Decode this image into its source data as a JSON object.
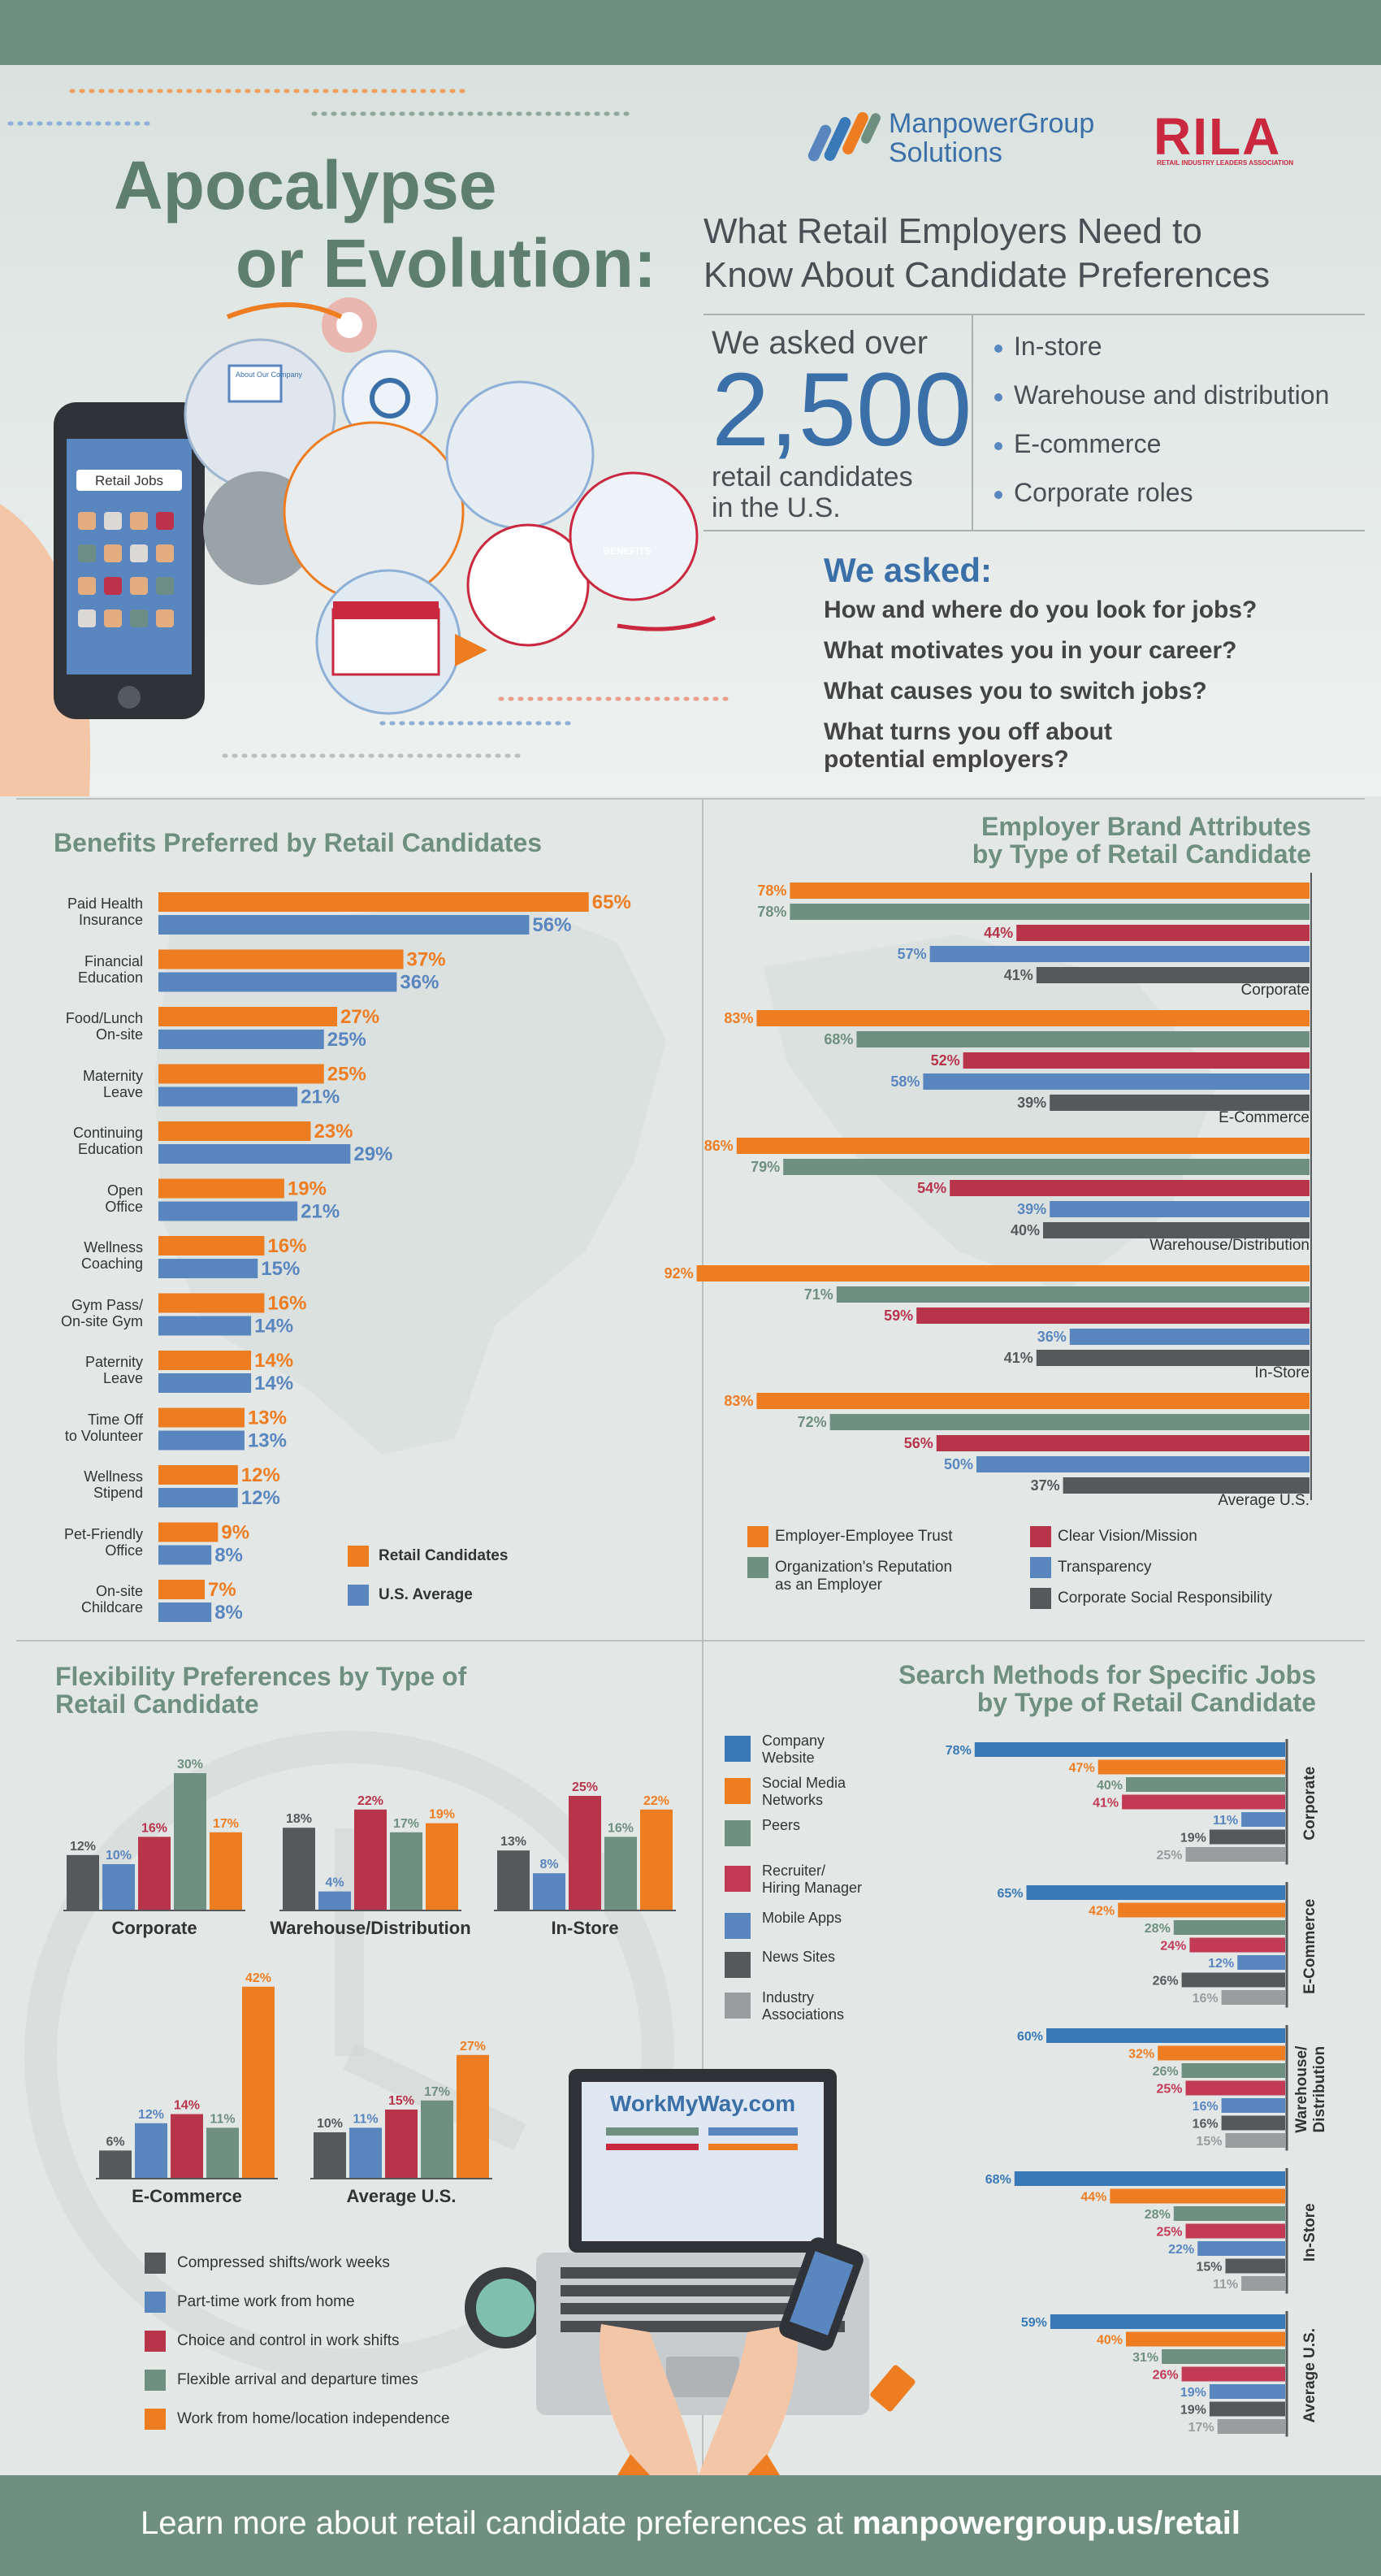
{
  "header": {
    "title_line1": "Apocalypse",
    "title_line2": "or Evolution:",
    "subtitle_line1": "What Retail Employers Need to",
    "subtitle_line2": "Know About Candidate Preferences",
    "brand1_line1": "ManpowerGroup",
    "brand1_line2": "Solutions",
    "brand2": "RILA",
    "brand2_sub": "RETAIL INDUSTRY LEADERS ASSOCIATION",
    "phone_search": "Retail Jobs",
    "illus_about": "About Our Company",
    "illus_benefits": "BENEFITS",
    "asked_over": "We asked over",
    "count": "2,500",
    "candidates_line1": "retail candidates",
    "candidates_line2": "in the U.S.",
    "roles": [
      "In-store",
      "Warehouse and distribution",
      "E-commerce",
      "Corporate roles"
    ],
    "we_asked": "We asked:",
    "questions": [
      "How and where do you look for jobs?",
      "What motivates you in your career?",
      "What causes you to switch jobs?",
      "What turns you off about",
      "potential employers?"
    ]
  },
  "benefits": {
    "title": "Benefits Preferred by Retail Candidates",
    "legend": [
      "Retail Candidates",
      "U.S. Average"
    ],
    "colors": [
      "#ee7d22",
      "#5a86c0"
    ]
  },
  "chart_data": [
    {
      "type": "bar",
      "orientation": "horizontal",
      "title": "Benefits Preferred by Retail Candidates",
      "categories": [
        "Paid Health Insurance",
        "Financial Education",
        "Food/Lunch On-site",
        "Maternity Leave",
        "Continuing Education",
        "Open Office",
        "Wellness Coaching",
        "Gym Pass/ On-site Gym",
        "Paternity Leave",
        "Time Off to Volunteer",
        "Wellness Stipend",
        "Pet-Friendly Office",
        "On-site Childcare"
      ],
      "series": [
        {
          "name": "Retail Candidates",
          "values": [
            65,
            37,
            27,
            25,
            23,
            19,
            16,
            16,
            14,
            13,
            12,
            9,
            7
          ]
        },
        {
          "name": "U.S. Average",
          "values": [
            56,
            36,
            25,
            21,
            29,
            21,
            15,
            14,
            14,
            13,
            12,
            8,
            8
          ]
        }
      ],
      "unit": "%"
    },
    {
      "type": "bar",
      "orientation": "horizontal",
      "title": "Employer Brand Attributes by Type of Retail Candidate",
      "groups": [
        "Corporate",
        "E-Commerce",
        "Warehouse/Distribution",
        "In-Store",
        "Average U.S."
      ],
      "series": [
        {
          "name": "Employer-Employee Trust",
          "values": [
            78,
            83,
            86,
            92,
            83
          ]
        },
        {
          "name": "Organization's Reputation as an Employer",
          "values": [
            78,
            68,
            79,
            71,
            72
          ]
        },
        {
          "name": "Clear Vision/Mission",
          "values": [
            44,
            52,
            54,
            59,
            56
          ]
        },
        {
          "name": "Transparency",
          "values": [
            57,
            58,
            39,
            36,
            50
          ]
        },
        {
          "name": "Corporate Social Responsibility",
          "values": [
            41,
            39,
            40,
            41,
            37
          ]
        }
      ],
      "unit": "%"
    },
    {
      "type": "bar",
      "title": "Flexibility Preferences by Type of Retail Candidate",
      "groups": [
        "Corporate",
        "Warehouse/Distribution",
        "In-Store",
        "E-Commerce",
        "Average U.S."
      ],
      "series": [
        {
          "name": "Compressed shifts/work weeks",
          "values": [
            12,
            18,
            13,
            6,
            10
          ]
        },
        {
          "name": "Part-time work from home",
          "values": [
            10,
            4,
            8,
            12,
            11
          ]
        },
        {
          "name": "Choice and control in work shifts",
          "values": [
            16,
            22,
            25,
            14,
            15
          ]
        },
        {
          "name": "Flexible arrival and departure times",
          "values": [
            30,
            17,
            16,
            11,
            17
          ]
        },
        {
          "name": "Work from home/location independence",
          "values": [
            17,
            19,
            22,
            42,
            27
          ]
        }
      ],
      "unit": "%"
    },
    {
      "type": "bar",
      "orientation": "horizontal",
      "title": "Search Methods for Specific Jobs by Type of Retail Candidate",
      "groups": [
        "Corporate",
        "E-Commerce",
        "Warehouse/ Distribution",
        "In-Store",
        "Average U.S."
      ],
      "series": [
        {
          "name": "Company Website",
          "values": [
            78,
            65,
            60,
            68,
            59
          ]
        },
        {
          "name": "Social Media Networks",
          "values": [
            47,
            42,
            32,
            44,
            40
          ]
        },
        {
          "name": "Peers",
          "values": [
            40,
            28,
            26,
            28,
            31
          ]
        },
        {
          "name": "Recruiter/ Hiring Manager",
          "values": [
            41,
            24,
            25,
            25,
            26
          ]
        },
        {
          "name": "Mobile Apps",
          "values": [
            11,
            12,
            16,
            22,
            19
          ]
        },
        {
          "name": "News Sites",
          "values": [
            19,
            26,
            16,
            15,
            19
          ]
        },
        {
          "name": "Industry Associations",
          "values": [
            25,
            16,
            15,
            11,
            17
          ]
        }
      ],
      "unit": "%"
    }
  ],
  "brand": {
    "title_line1": "Employer Brand Attributes",
    "title_line2": "by Type of Retail Candidate",
    "colors": [
      "#ee7d22",
      "#6f8f80",
      "#b8344a",
      "#5a86c0",
      "#56585c"
    ],
    "legend": [
      "Employer-Employee Trust",
      "Organization's Reputation",
      "as an Employer",
      "Clear Vision/Mission",
      "Transparency",
      "Corporate Social Responsibility"
    ]
  },
  "flex": {
    "title_line1": "Flexibility Preferences by Type of",
    "title_line2": "Retail Candidate",
    "colors": [
      "#56585c",
      "#5a86c0",
      "#b8344a",
      "#6f8f80",
      "#ee7d22"
    ],
    "legend": [
      "Compressed shifts/work weeks",
      "Part-time work from home",
      "Choice and control in work shifts",
      "Flexible arrival and departure times",
      "Work from home/location independence"
    ]
  },
  "search": {
    "title_line1": "Search Methods for Specific Jobs",
    "title_line2": "by Type of Retail Candidate",
    "colors": [
      "#3a79b8",
      "#ee7d22",
      "#6f8f80",
      "#c23a55",
      "#5a86c0",
      "#56585c",
      "#9a9c9f"
    ],
    "legend": [
      [
        "Company",
        "Website"
      ],
      [
        "Social Media",
        "Networks"
      ],
      [
        "Peers"
      ],
      [
        "Recruiter/",
        "Hiring Manager"
      ],
      [
        "Mobile Apps"
      ],
      [
        "News Sites"
      ],
      [
        "Industry",
        "Associations"
      ]
    ]
  },
  "laptop": {
    "site": "WorkMyWay.com"
  },
  "footer": {
    "text": "Learn more about retail candidate preferences at ",
    "link": "manpowergroup.us/retail"
  }
}
